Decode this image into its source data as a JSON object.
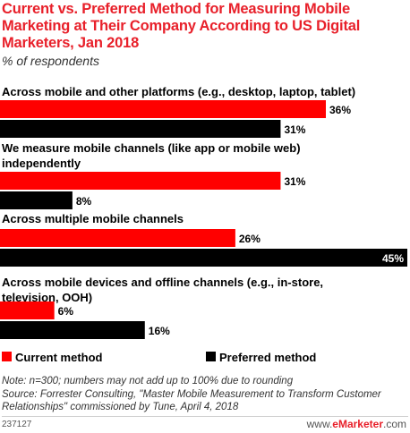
{
  "title": "Current vs. Preferred Method for Measuring Mobile Marketing at Their Company According to US Digital Marketers, Jan 2018",
  "subtitle": "% of respondents",
  "colors": {
    "current": "#ff0000",
    "preferred": "#000000",
    "title": "#e8202a"
  },
  "chart_data": {
    "type": "bar",
    "orientation": "horizontal",
    "categories": [
      "Across mobile and other platforms (e.g., desktop, laptop, tablet)",
      "We measure mobile channels (like app or mobile web) independently",
      "Across multiple mobile channels",
      "Across mobile devices and offline channels (e.g., in-store, television, OOH)"
    ],
    "series": [
      {
        "name": "Current method",
        "values": [
          36,
          31,
          26,
          6
        ]
      },
      {
        "name": "Preferred method",
        "values": [
          31,
          8,
          45,
          16
        ]
      }
    ],
    "value_labels": [
      [
        "36%",
        "31%",
        "26%",
        "6%"
      ],
      [
        "31%",
        "8%",
        "45%",
        "16%"
      ]
    ],
    "xlim": [
      0,
      45
    ],
    "grid": false,
    "legend": "bottom-left"
  },
  "note": "Note: n=300; numbers may not add up to 100% due to rounding",
  "source": "Source: Forrester Consulting, \"Master Mobile Measurement to Transform Customer Relationships\" commissioned by Tune, April 4, 2018",
  "footer": {
    "id": "237127",
    "brand_prefix": "www.",
    "brand_name": "eMarketer",
    "brand_suffix": ".com"
  }
}
